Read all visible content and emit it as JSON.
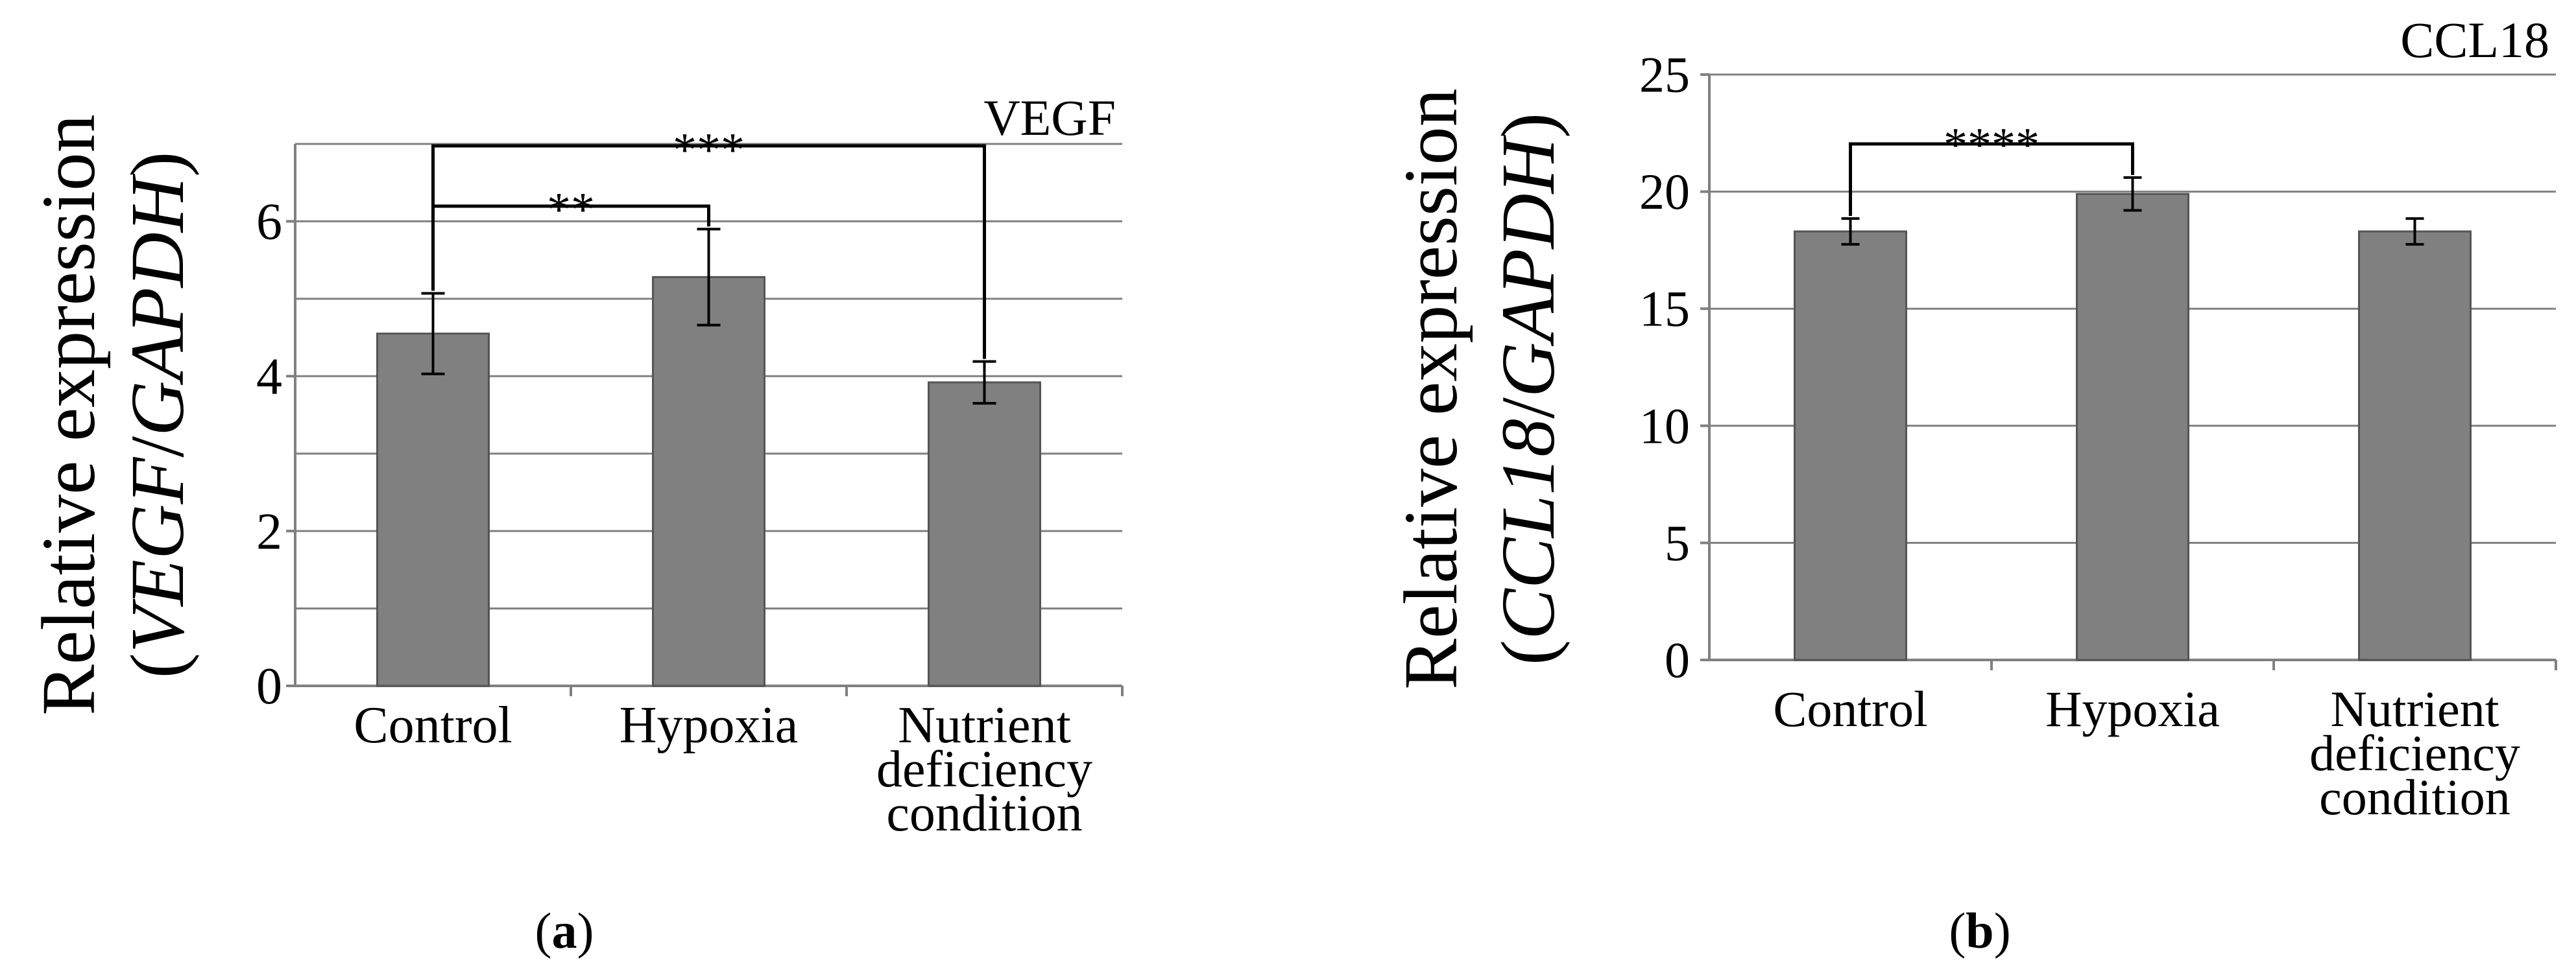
{
  "chart_data": [
    {
      "type": "bar",
      "panel_label": "a",
      "title": "VEGF",
      "ylabel_plain": "Relative expression",
      "ylabel_italic": "VEGF",
      "ylabel_sep": "/",
      "ylabel_italic2": "GAPDH",
      "ylim": [
        0,
        7
      ],
      "yticks": [
        0,
        2,
        4,
        6
      ],
      "gridlines": [
        1,
        2,
        3,
        4,
        5,
        6,
        7
      ],
      "categories": [
        [
          "Control"
        ],
        [
          "Hypoxia"
        ],
        [
          "Nutrient",
          "deficiency",
          "condition"
        ]
      ],
      "values": [
        4.55,
        5.28,
        3.92
      ],
      "errors": [
        0.52,
        0.62,
        0.27
      ],
      "significance": [
        {
          "from": 0,
          "to": 1,
          "label": "**"
        },
        {
          "from": 0,
          "to": 2,
          "label": "***"
        }
      ]
    },
    {
      "type": "bar",
      "panel_label": "b",
      "title": "CCL18",
      "ylabel_plain": "Relative expression",
      "ylabel_italic": "CCL18",
      "ylabel_sep": "/",
      "ylabel_italic2": "GAPDH",
      "ylim": [
        0,
        25
      ],
      "yticks": [
        0,
        5,
        10,
        15,
        20,
        25
      ],
      "gridlines": [
        5,
        10,
        15,
        20,
        25
      ],
      "categories": [
        [
          "Control"
        ],
        [
          "Hypoxia"
        ],
        [
          "Nutrient",
          "deficiency",
          "condition"
        ]
      ],
      "values": [
        18.3,
        19.9,
        18.3
      ],
      "errors": [
        0.55,
        0.7,
        0.55
      ],
      "significance": [
        {
          "from": 0,
          "to": 1,
          "label": "****"
        }
      ]
    }
  ]
}
